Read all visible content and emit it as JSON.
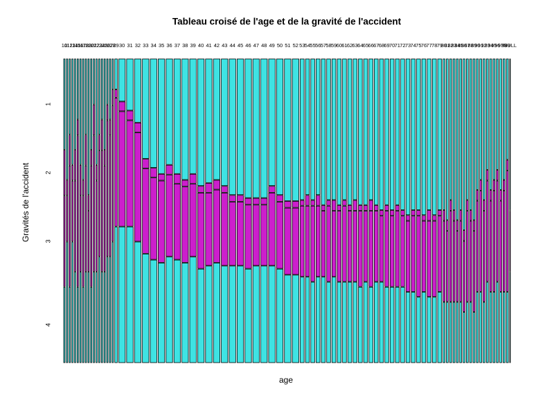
{
  "chart_data": {
    "type": "mosaic",
    "title": "Tableau croisé de l'age et de la gravité de l'accident",
    "xlabel": "age",
    "ylabel": "Gravités de l'accident",
    "categories": [
      "10",
      "11",
      "12",
      "13",
      "14",
      "15",
      "16",
      "17",
      "18",
      "19",
      "20",
      "21",
      "22",
      "23",
      "24",
      "25",
      "26",
      "27",
      "28",
      "29",
      "30",
      "31",
      "32",
      "33",
      "34",
      "35",
      "36",
      "37",
      "38",
      "39",
      "40",
      "41",
      "42",
      "43",
      "44",
      "45",
      "46",
      "47",
      "48",
      "49",
      "50",
      "51",
      "52",
      "53",
      "54",
      "55",
      "56",
      "57",
      "58",
      "59",
      "60",
      "61",
      "62",
      "63",
      "64",
      "65",
      "66",
      "67",
      "68",
      "69",
      "70",
      "71",
      "72",
      "73",
      "74",
      "75",
      "76",
      "77",
      "78",
      "79",
      "80",
      "81",
      "82",
      "83",
      "84",
      "85",
      "86",
      "87",
      "88",
      "89",
      "90",
      "91",
      "92",
      "93",
      "94",
      "95",
      "96",
      "97",
      "98",
      "99",
      "NULL"
    ],
    "series": [
      {
        "name": "1",
        "color": "#3ee3e3",
        "values": [
          6,
          8,
          5,
          7,
          6,
          4,
          7,
          8,
          5,
          9,
          6,
          3,
          7,
          5,
          4,
          6,
          3,
          4,
          2,
          4,
          14,
          17,
          21,
          33,
          36,
          38,
          35,
          38,
          40,
          38,
          42,
          41,
          40,
          42,
          45,
          45,
          46,
          46,
          46,
          42,
          45,
          47,
          47,
          28,
          27,
          28,
          27,
          29,
          28,
          28,
          29,
          28,
          29,
          28,
          29,
          29,
          28,
          29,
          30,
          29,
          30,
          29,
          30,
          31,
          30,
          30,
          31,
          30,
          31,
          30,
          15,
          16,
          14,
          15,
          16,
          15,
          17,
          14,
          15,
          16,
          13,
          12,
          14,
          11,
          13,
          12,
          11,
          13,
          12,
          10,
          5
        ]
      },
      {
        "name": "2",
        "color": "#cc1fcc",
        "values": [
          3,
          1,
          2,
          1,
          2,
          1,
          2,
          1,
          2,
          1,
          1,
          2,
          1,
          1,
          2,
          1,
          1,
          1,
          1,
          1,
          3,
          3,
          3,
          3,
          3,
          2,
          3,
          3,
          2,
          3,
          2,
          3,
          3,
          2,
          2,
          2,
          2,
          2,
          2,
          2,
          2,
          2,
          2,
          1,
          2,
          1,
          2,
          1,
          1,
          2,
          1,
          1,
          1,
          2,
          1,
          1,
          2,
          1,
          1,
          1,
          1,
          1,
          1,
          1,
          1,
          1,
          1,
          2,
          1,
          1,
          1,
          1,
          1,
          1,
          1,
          1,
          1,
          1,
          1,
          1,
          1,
          1,
          1,
          1,
          1,
          1,
          1,
          1,
          1,
          1,
          0
        ]
      },
      {
        "name": "3",
        "color": "#cc1fcc",
        "values": [
          6,
          3,
          8,
          4,
          6,
          10,
          5,
          6,
          7,
          4,
          8,
          9,
          6,
          7,
          8,
          7,
          9,
          8,
          9,
          17,
          38,
          35,
          36,
          28,
          27,
          27,
          27,
          25,
          25,
          24,
          25,
          24,
          24,
          24,
          21,
          21,
          21,
          20,
          20,
          24,
          22,
          22,
          22,
          14,
          14,
          15,
          14,
          13,
          15,
          13,
          14,
          15,
          14,
          14,
          15,
          14,
          15,
          14,
          13,
          15,
          14,
          15,
          14,
          14,
          15,
          16,
          14,
          15,
          15,
          15,
          8,
          7,
          9,
          8,
          7,
          8,
          7,
          9,
          8,
          8,
          9,
          10,
          9,
          10,
          9,
          10,
          10,
          9,
          10,
          12,
          2
        ]
      },
      {
        "name": "4",
        "color": "#3ee3e3",
        "values": [
          5,
          8,
          5,
          8,
          6,
          5,
          6,
          5,
          6,
          6,
          5,
          6,
          6,
          7,
          6,
          6,
          7,
          7,
          8,
          18,
          45,
          45,
          40,
          36,
          34,
          33,
          35,
          34,
          33,
          35,
          31,
          32,
          33,
          32,
          32,
          32,
          31,
          32,
          32,
          32,
          31,
          29,
          29,
          17,
          17,
          16,
          17,
          17,
          16,
          17,
          16,
          16,
          16,
          16,
          15,
          16,
          15,
          16,
          16,
          15,
          15,
          15,
          15,
          14,
          14,
          13,
          14,
          13,
          13,
          14,
          6,
          6,
          6,
          6,
          6,
          6,
          5,
          6,
          6,
          5,
          7,
          7,
          6,
          8,
          7,
          7,
          8,
          7,
          7,
          7,
          3
        ]
      }
    ]
  }
}
